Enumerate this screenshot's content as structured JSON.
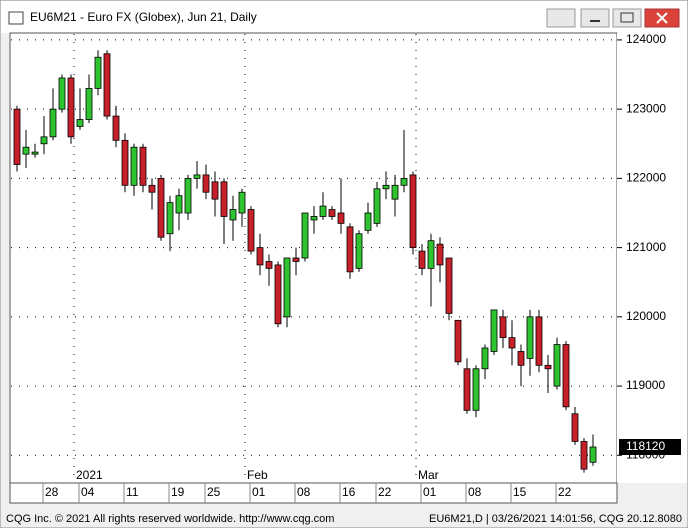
{
  "window": {
    "title": "EU6M21 - Euro FX (Globex), Jun 21, Daily",
    "footer_left": "CQG Inc. © 2021 All rights reserved worldwide. http://www.cqg.com",
    "footer_right": "EU6M21,D | 03/26/2021 14:01:56, CQG 20.12.8080"
  },
  "chart_data": {
    "type": "candlestick",
    "categories": [
      null,
      null,
      null,
      "28",
      null,
      null,
      null,
      "04",
      null,
      null,
      null,
      null,
      "11",
      null,
      null,
      null,
      null,
      "19",
      null,
      null,
      null,
      "25",
      null,
      null,
      null,
      null,
      "01",
      null,
      null,
      null,
      null,
      "08",
      null,
      null,
      null,
      null,
      "16",
      null,
      null,
      null,
      "22",
      null,
      null,
      null,
      null,
      "01",
      null,
      null,
      null,
      null,
      "08",
      null,
      null,
      null,
      null,
      "15",
      null,
      null,
      null,
      null,
      "22",
      null,
      null,
      null,
      null
    ],
    "period_labels": [
      null,
      null,
      null,
      null,
      null,
      null,
      null,
      "2021",
      null,
      null,
      null,
      null,
      null,
      null,
      null,
      null,
      null,
      null,
      null,
      null,
      null,
      null,
      null,
      null,
      null,
      null,
      "Feb",
      null,
      null,
      null,
      null,
      null,
      null,
      null,
      null,
      null,
      null,
      null,
      null,
      null,
      null,
      null,
      null,
      null,
      null,
      "Mar",
      null,
      null,
      null,
      null,
      null,
      null,
      null,
      null,
      null,
      null,
      null,
      null,
      null,
      null,
      null,
      null,
      null,
      null,
      null
    ],
    "open": [
      123000,
      122350,
      122350,
      122500,
      122600,
      123000,
      123450,
      122750,
      122850,
      123300,
      123800,
      122900,
      122550,
      121900,
      122450,
      121900,
      122000,
      121200,
      121500,
      121500,
      122000,
      122050,
      121950,
      121950,
      121400,
      121500,
      121550,
      121000,
      120800,
      120750,
      120000,
      120850,
      120850,
      121400,
      121450,
      121550,
      121500,
      121300,
      120700,
      121250,
      121350,
      121850,
      121700,
      121900,
      122050,
      120950,
      120700,
      121050,
      120850,
      119950,
      119250,
      118650,
      119250,
      119500,
      120000,
      119700,
      119500,
      119400,
      120000,
      119300,
      119000,
      119600,
      118600,
      118200,
      117900
    ],
    "high": [
      123050,
      122700,
      122500,
      122900,
      123300,
      123500,
      123500,
      123300,
      123500,
      123850,
      123850,
      123050,
      122650,
      122500,
      122500,
      122000,
      122050,
      121750,
      121850,
      122050,
      122250,
      122200,
      122100,
      122000,
      121750,
      121850,
      121600,
      121200,
      120900,
      120800,
      120850,
      121000,
      121500,
      121600,
      121800,
      121600,
      122000,
      121350,
      121250,
      121650,
      121950,
      122100,
      122050,
      122700,
      122100,
      121050,
      121200,
      121150,
      120850,
      119950,
      119400,
      119300,
      119600,
      120100,
      120100,
      119950,
      119600,
      120100,
      120100,
      119450,
      119700,
      119650,
      118700,
      118250,
      118300
    ],
    "low": [
      122100,
      122150,
      122300,
      122350,
      122550,
      122950,
      122500,
      122700,
      122800,
      123200,
      122850,
      122450,
      121800,
      121750,
      121800,
      121550,
      121100,
      120950,
      121250,
      121400,
      121850,
      121700,
      121450,
      121050,
      121100,
      121300,
      120900,
      120600,
      120450,
      119850,
      119850,
      120600,
      120800,
      121200,
      121400,
      121400,
      121200,
      120550,
      120650,
      121200,
      121300,
      121700,
      121450,
      121800,
      120900,
      120600,
      120150,
      120500,
      119950,
      119300,
      118600,
      118550,
      119100,
      119450,
      119550,
      119300,
      119000,
      119150,
      119200,
      118900,
      118950,
      118650,
      118150,
      117750,
      117850
    ],
    "close": [
      122200,
      122450,
      122380,
      122600,
      123000,
      123450,
      122600,
      122850,
      123300,
      123750,
      122900,
      122550,
      121900,
      122450,
      121900,
      121800,
      121150,
      121650,
      121750,
      122000,
      122050,
      121800,
      121700,
      121450,
      121550,
      121800,
      120950,
      120750,
      120700,
      119900,
      120850,
      120800,
      121500,
      121450,
      121600,
      121450,
      121350,
      120650,
      121200,
      121500,
      121850,
      121900,
      121900,
      122000,
      121000,
      120700,
      121100,
      120750,
      120050,
      119350,
      118650,
      119250,
      119550,
      120100,
      119700,
      119550,
      119300,
      120000,
      119300,
      119250,
      119600,
      118700,
      118200,
      117800,
      118120
    ],
    "last_value": 118120,
    "ylim": [
      117600,
      124100
    ],
    "yticks": [
      118000,
      119000,
      120000,
      121000,
      122000,
      123000,
      124000
    ],
    "grid": true,
    "up_color": "#2fc42f",
    "down_color": "#c8202a"
  }
}
